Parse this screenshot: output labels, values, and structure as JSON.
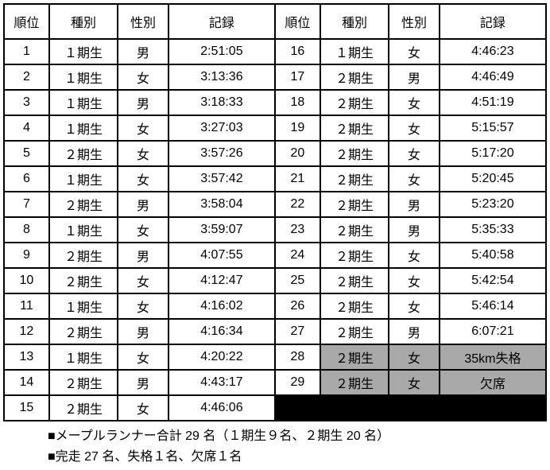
{
  "headers": {
    "rank": "順位",
    "type": "種別",
    "sex": "性別",
    "record": "記録"
  },
  "rows_left": [
    {
      "rank": "1",
      "type": "１期生",
      "sex": "男",
      "record": "2:51:05"
    },
    {
      "rank": "2",
      "type": "１期生",
      "sex": "女",
      "record": "3:13:36"
    },
    {
      "rank": "3",
      "type": "１期生",
      "sex": "男",
      "record": "3:18:33"
    },
    {
      "rank": "4",
      "type": "１期生",
      "sex": "女",
      "record": "3:27:03"
    },
    {
      "rank": "5",
      "type": "２期生",
      "sex": "女",
      "record": "3:57:26"
    },
    {
      "rank": "6",
      "type": "１期生",
      "sex": "女",
      "record": "3:57:42"
    },
    {
      "rank": "7",
      "type": "２期生",
      "sex": "男",
      "record": "3:58:04"
    },
    {
      "rank": "8",
      "type": "１期生",
      "sex": "女",
      "record": "3:59:07"
    },
    {
      "rank": "9",
      "type": "２期生",
      "sex": "男",
      "record": "4:07:55"
    },
    {
      "rank": "10",
      "type": "２期生",
      "sex": "女",
      "record": "4:12:47"
    },
    {
      "rank": "11",
      "type": "１期生",
      "sex": "女",
      "record": "4:16:02"
    },
    {
      "rank": "12",
      "type": "２期生",
      "sex": "男",
      "record": "4:16:34"
    },
    {
      "rank": "13",
      "type": "１期生",
      "sex": "女",
      "record": "4:20:22"
    },
    {
      "rank": "14",
      "type": "２期生",
      "sex": "男",
      "record": "4:43:17"
    },
    {
      "rank": "15",
      "type": "２期生",
      "sex": "女",
      "record": "4:46:06"
    }
  ],
  "rows_right": [
    {
      "rank": "16",
      "type": "１期生",
      "sex": "女",
      "record": "4:46:23",
      "dq": false
    },
    {
      "rank": "17",
      "type": "２期生",
      "sex": "男",
      "record": "4:46:49",
      "dq": false
    },
    {
      "rank": "18",
      "type": "２期生",
      "sex": "女",
      "record": "4:51:19",
      "dq": false
    },
    {
      "rank": "19",
      "type": "２期生",
      "sex": "女",
      "record": "5:15:57",
      "dq": false
    },
    {
      "rank": "20",
      "type": "２期生",
      "sex": "女",
      "record": "5:17:20",
      "dq": false
    },
    {
      "rank": "21",
      "type": "２期生",
      "sex": "女",
      "record": "5:20:45",
      "dq": false
    },
    {
      "rank": "22",
      "type": "２期生",
      "sex": "男",
      "record": "5:23:20",
      "dq": false
    },
    {
      "rank": "23",
      "type": "２期生",
      "sex": "男",
      "record": "5:35:33",
      "dq": false
    },
    {
      "rank": "24",
      "type": "２期生",
      "sex": "女",
      "record": "5:40:58",
      "dq": false
    },
    {
      "rank": "25",
      "type": "２期生",
      "sex": "女",
      "record": "5:42:54",
      "dq": false
    },
    {
      "rank": "26",
      "type": "２期生",
      "sex": "女",
      "record": "5:46:14",
      "dq": false
    },
    {
      "rank": "27",
      "type": "２期生",
      "sex": "男",
      "record": "6:07:21",
      "dq": false
    },
    {
      "rank": "28",
      "type": "２期生",
      "sex": "女",
      "record": "35km失格",
      "dq": true
    },
    {
      "rank": "29",
      "type": "２期生",
      "sex": "女",
      "record": "欠席",
      "dq": true
    }
  ],
  "notes": [
    "■メープルランナー合計 29 名（１期生９名、２期生 20 名）",
    "■完走 27 名、失格１名、欠席１名"
  ],
  "style": {
    "dq_bg": "#a9a9a9",
    "filler_bg": "#000000",
    "border_color": "#000000",
    "font_size": 16
  }
}
